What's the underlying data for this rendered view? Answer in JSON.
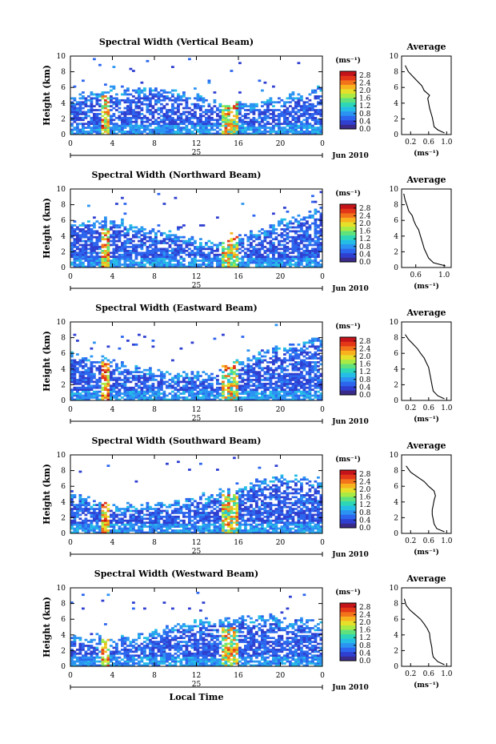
{
  "colors": {
    "scale": [
      "#3a2a8a",
      "#2f3fd0",
      "#2c66ee",
      "#2b93f2",
      "#25bce6",
      "#2ed6b8",
      "#5fe27e",
      "#a9ea45",
      "#e6e02a",
      "#f7b21e",
      "#f2731a",
      "#e43718",
      "#c4141a"
    ]
  },
  "chart_data": [
    {
      "type": "heatmap",
      "title": "Spectral Width (Vertical Beam)",
      "ylabel": "Height (km)",
      "xticks": [
        "0",
        "4",
        "8",
        "12",
        "16",
        "20",
        "0"
      ],
      "yticks": [
        "0",
        "2",
        "4",
        "6",
        "8",
        "10"
      ],
      "day_label": "25",
      "date_label": "Jun 2010",
      "colorbar": {
        "unit": "(ms⁻¹)",
        "ticks": [
          "0.0",
          "0.4",
          "0.8",
          "1.2",
          "1.6",
          "2.0",
          "2.4",
          "2.8"
        ],
        "range": [
          0,
          3.0
        ]
      },
      "avg": {
        "title": "Average",
        "xlabel": "(ms⁻¹)",
        "xticks": [
          "0.2",
          "0.6",
          "1.0"
        ],
        "xlim": [
          0,
          1.1
        ],
        "ylim": [
          0,
          10
        ],
        "yticks": [
          "0",
          "2",
          "4",
          "6",
          "8",
          "10"
        ],
        "profile": [
          [
            0.95,
            0.2
          ],
          [
            0.8,
            0.6
          ],
          [
            0.72,
            1.0
          ],
          [
            0.7,
            1.6
          ],
          [
            0.68,
            2.2
          ],
          [
            0.65,
            2.8
          ],
          [
            0.62,
            3.4
          ],
          [
            0.6,
            4.0
          ],
          [
            0.58,
            4.6
          ],
          [
            0.62,
            5.0
          ],
          [
            0.5,
            5.6
          ],
          [
            0.45,
            6.2
          ],
          [
            0.35,
            6.8
          ],
          [
            0.25,
            7.4
          ],
          [
            0.15,
            8.0
          ],
          [
            0.08,
            8.8
          ]
        ]
      }
    },
    {
      "type": "heatmap",
      "title": "Spectral Width (Northward Beam)",
      "ylabel": "Height (km)",
      "xticks": [
        "0",
        "4",
        "8",
        "12",
        "16",
        "20",
        "0"
      ],
      "yticks": [
        "0",
        "2",
        "4",
        "6",
        "8",
        "10"
      ],
      "day_label": "25",
      "date_label": "Jun 2010",
      "colorbar": {
        "unit": "(ms⁻¹)",
        "ticks": [
          "0.0",
          "0.4",
          "0.8",
          "1.2",
          "1.6",
          "2.0",
          "2.4",
          "2.8"
        ],
        "range": [
          0,
          3.0
        ]
      },
      "avg": {
        "title": "Average",
        "xlabel": "(ms⁻¹)",
        "xticks": [
          "0.6",
          "1.0"
        ],
        "xlim": [
          0.4,
          1.1
        ],
        "ylim": [
          0,
          10
        ],
        "yticks": [
          "0",
          "2",
          "4",
          "6",
          "8",
          "10"
        ],
        "profile": [
          [
            1.02,
            0.2
          ],
          [
            0.85,
            0.6
          ],
          [
            0.78,
            1.2
          ],
          [
            0.75,
            1.8
          ],
          [
            0.72,
            2.4
          ],
          [
            0.7,
            3.0
          ],
          [
            0.68,
            3.6
          ],
          [
            0.66,
            4.2
          ],
          [
            0.64,
            4.8
          ],
          [
            0.6,
            5.4
          ],
          [
            0.57,
            6.0
          ],
          [
            0.55,
            6.6
          ],
          [
            0.5,
            7.2
          ],
          [
            0.48,
            7.8
          ],
          [
            0.45,
            8.6
          ],
          [
            0.43,
            9.4
          ]
        ]
      }
    },
    {
      "type": "heatmap",
      "title": "Spectral Width (Eastward Beam)",
      "ylabel": "Height (km)",
      "xticks": [
        "0",
        "4",
        "8",
        "12",
        "16",
        "20",
        "0"
      ],
      "yticks": [
        "0",
        "2",
        "4",
        "6",
        "8",
        "10"
      ],
      "day_label": "25",
      "date_label": "Jun 2010",
      "colorbar": {
        "unit": "(ms⁻¹)",
        "ticks": [
          "0.0",
          "0.4",
          "0.8",
          "1.2",
          "1.6",
          "2.0",
          "2.4",
          "2.8"
        ],
        "range": [
          0,
          3.0
        ]
      },
      "avg": {
        "title": "Average",
        "xlabel": "(ms⁻¹)",
        "xticks": [
          "0.2",
          "0.6",
          "1.0"
        ],
        "xlim": [
          0,
          1.1
        ],
        "ylim": [
          0,
          10
        ],
        "yticks": [
          "0",
          "2",
          "4",
          "6",
          "8",
          "10"
        ],
        "profile": [
          [
            0.95,
            0.2
          ],
          [
            0.8,
            0.6
          ],
          [
            0.7,
            1.2
          ],
          [
            0.68,
            1.8
          ],
          [
            0.66,
            2.4
          ],
          [
            0.64,
            3.0
          ],
          [
            0.62,
            3.6
          ],
          [
            0.6,
            4.2
          ],
          [
            0.55,
            4.8
          ],
          [
            0.5,
            5.4
          ],
          [
            0.42,
            6.0
          ],
          [
            0.35,
            6.6
          ],
          [
            0.25,
            7.2
          ],
          [
            0.15,
            7.8
          ],
          [
            0.08,
            8.4
          ]
        ]
      }
    },
    {
      "type": "heatmap",
      "title": "Spectral Width (Southward Beam)",
      "ylabel": "Height (km)",
      "xticks": [
        "0",
        "4",
        "8",
        "12",
        "16",
        "20",
        "0"
      ],
      "yticks": [
        "0",
        "2",
        "4",
        "6",
        "8",
        "10"
      ],
      "day_label": "25",
      "date_label": "Jun 2010",
      "colorbar": {
        "unit": "(ms⁻¹)",
        "ticks": [
          "0.0",
          "0.4",
          "0.8",
          "1.2",
          "1.6",
          "2.0",
          "2.4",
          "2.8"
        ],
        "range": [
          0,
          3.0
        ]
      },
      "avg": {
        "title": "Average",
        "xlabel": "(ms⁻¹)",
        "xticks": [
          "0.2",
          "0.6",
          "1.0"
        ],
        "xlim": [
          0,
          1.1
        ],
        "ylim": [
          0,
          10
        ],
        "yticks": [
          "0",
          "2",
          "4",
          "6",
          "8",
          "10"
        ],
        "profile": [
          [
            0.95,
            0.2
          ],
          [
            0.78,
            0.6
          ],
          [
            0.72,
            1.2
          ],
          [
            0.7,
            1.8
          ],
          [
            0.68,
            2.4
          ],
          [
            0.68,
            3.0
          ],
          [
            0.7,
            3.6
          ],
          [
            0.72,
            4.2
          ],
          [
            0.75,
            4.8
          ],
          [
            0.72,
            5.4
          ],
          [
            0.6,
            6.0
          ],
          [
            0.5,
            6.6
          ],
          [
            0.35,
            7.2
          ],
          [
            0.2,
            7.8
          ],
          [
            0.1,
            8.6
          ]
        ]
      }
    },
    {
      "type": "heatmap",
      "title": "Spectral Width (Westward Beam)",
      "ylabel": "Height (km)",
      "xlabel": "Local Time",
      "xticks": [
        "0",
        "4",
        "8",
        "12",
        "16",
        "20",
        "0"
      ],
      "yticks": [
        "0",
        "2",
        "4",
        "6",
        "8",
        "10"
      ],
      "day_label": "25",
      "date_label": "Jun 2010",
      "colorbar": {
        "unit": "(ms⁻¹)",
        "ticks": [
          "0.0",
          "0.4",
          "0.8",
          "1.2",
          "1.6",
          "2.0",
          "2.4",
          "2.8"
        ],
        "range": [
          0,
          3.0
        ]
      },
      "avg": {
        "title": "Average",
        "xlabel": "(ms⁻¹)",
        "xticks": [
          "0.2",
          "0.6",
          "1.0"
        ],
        "xlim": [
          0,
          1.1
        ],
        "ylim": [
          0,
          10
        ],
        "yticks": [
          "0",
          "2",
          "4",
          "6",
          "8",
          "10"
        ],
        "profile": [
          [
            0.95,
            0.2
          ],
          [
            0.8,
            0.6
          ],
          [
            0.7,
            1.2
          ],
          [
            0.68,
            1.8
          ],
          [
            0.67,
            2.4
          ],
          [
            0.65,
            3.0
          ],
          [
            0.63,
            3.6
          ],
          [
            0.62,
            4.2
          ],
          [
            0.57,
            4.8
          ],
          [
            0.5,
            5.4
          ],
          [
            0.42,
            6.0
          ],
          [
            0.3,
            6.6
          ],
          [
            0.18,
            7.2
          ],
          [
            0.1,
            7.8
          ],
          [
            0.06,
            8.6
          ]
        ]
      }
    }
  ]
}
